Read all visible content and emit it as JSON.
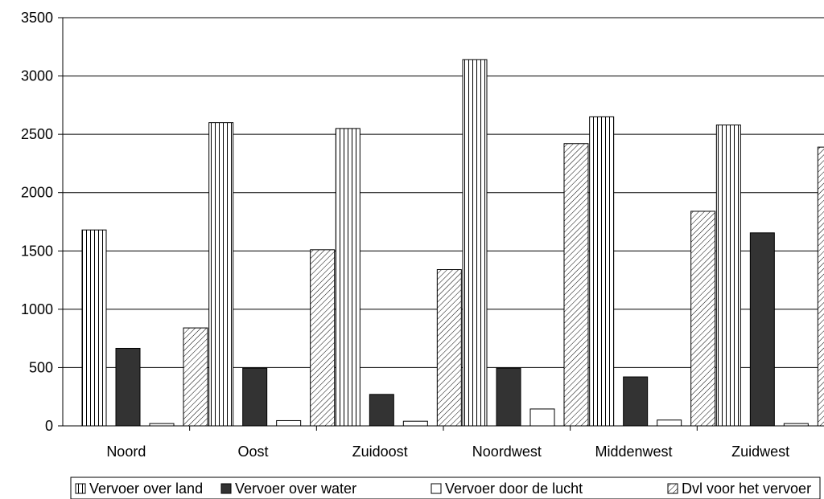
{
  "chart_data": {
    "type": "bar",
    "categories": [
      "Noord",
      "Oost",
      "Zuidoost",
      "Noordwest",
      "Middenwest",
      "Zuidwest"
    ],
    "series": [
      {
        "name": "Vervoer over land",
        "values": [
          1680,
          2600,
          2550,
          3140,
          2650,
          2580
        ],
        "pattern": "vertical-lines"
      },
      {
        "name": "Vervoer over water",
        "values": [
          665,
          495,
          270,
          495,
          420,
          1655
        ],
        "pattern": "solid-dark"
      },
      {
        "name": "Vervoer door de lucht",
        "values": [
          20,
          45,
          40,
          145,
          50,
          20
        ],
        "pattern": "empty"
      },
      {
        "name": "Dvl voor het vervoer",
        "values": [
          840,
          1510,
          1340,
          2420,
          1840,
          2390
        ],
        "pattern": "diagonal-lines"
      }
    ],
    "ylim": [
      0,
      3500
    ],
    "yticks": [
      "0",
      "500",
      "1000",
      "1500",
      "2000",
      "2500",
      "3000",
      "3500"
    ],
    "grid": true,
    "legend_position": "bottom",
    "colors": {
      "dark": "#333333",
      "line": "#000000",
      "background": "#ffffff"
    }
  }
}
